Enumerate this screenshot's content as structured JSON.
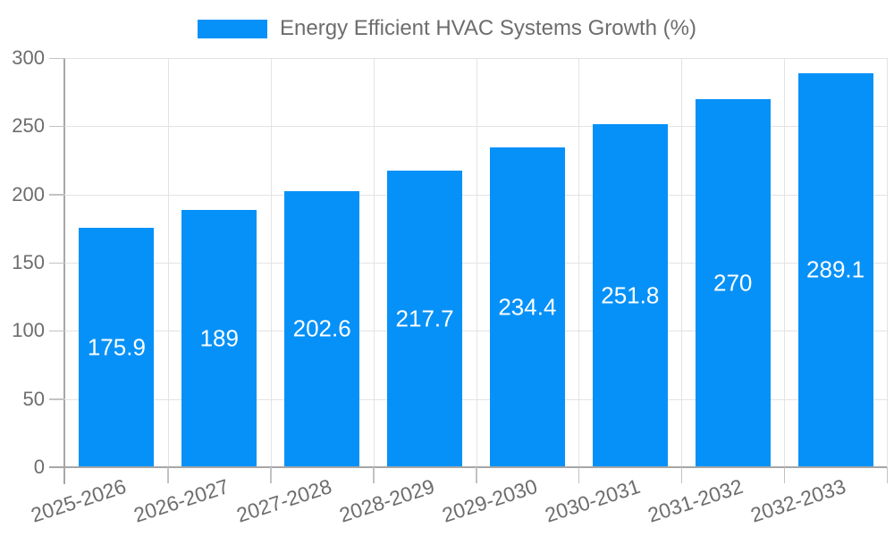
{
  "legend": {
    "label": "Energy Efficient HVAC Systems Growth (%)"
  },
  "colors": {
    "bar": "#0691f8",
    "grid": "#e3e3e3",
    "axis": "#a6a6a6",
    "tick_mark": "#c2c2c2",
    "tick_text": "#6d6d6d",
    "bar_label_text": "#ffffff",
    "background": "#ffffff"
  },
  "chart_data": {
    "type": "bar",
    "title": "Energy Efficient HVAC Systems Growth (%)",
    "categories": [
      "2025-2026",
      "2026-2027",
      "2027-2028",
      "2028-2029",
      "2029-2030",
      "2030-2031",
      "2031-2032",
      "2032-2033"
    ],
    "values": [
      175.9,
      189,
      202.6,
      217.7,
      234.4,
      251.8,
      270,
      289.1
    ],
    "value_labels": [
      "175.9",
      "189",
      "202.6",
      "217.7",
      "234.4",
      "251.8",
      "270",
      "289.1"
    ],
    "xlabel": "",
    "ylabel": "",
    "ylim": [
      0,
      300
    ],
    "ytick_step": 50,
    "yticks": [
      0,
      50,
      100,
      150,
      200,
      250,
      300
    ],
    "grid": true,
    "legend_position": "top",
    "bar_label_position": "center"
  }
}
